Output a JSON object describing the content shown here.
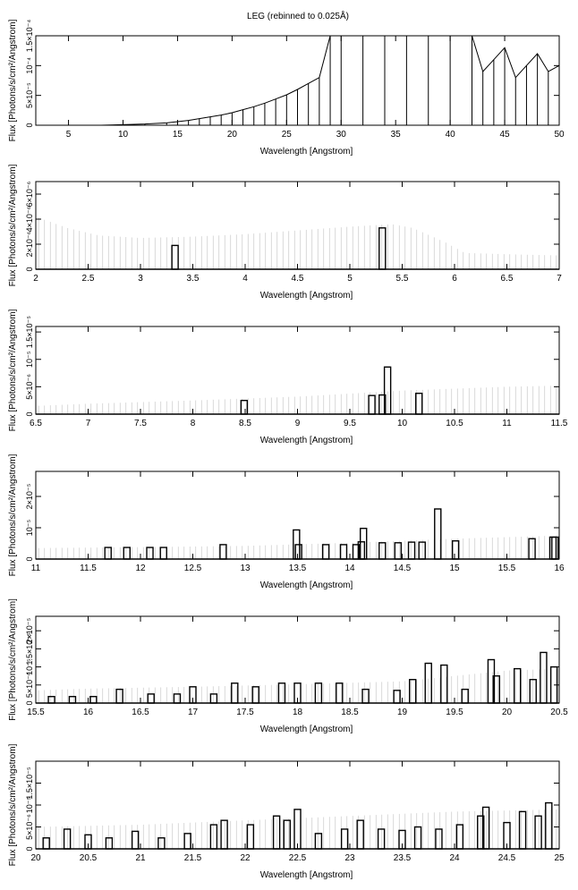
{
  "figure": {
    "title": "LEG (rebinned to 0.025Å)"
  },
  "chart_data": [
    {
      "type": "line",
      "xlabel": "Wavelength [Angstrom]",
      "ylabel": "Flux [Photons/s/cm²/Angstrom]",
      "xlim": [
        2,
        50
      ],
      "ylim": [
        0,
        0.00015
      ],
      "xticks": [
        5,
        10,
        15,
        20,
        25,
        30,
        35,
        40,
        45,
        50
      ],
      "xticklabels": [
        "5",
        "10",
        "15",
        "20",
        "25",
        "30",
        "35",
        "40",
        "45",
        "50"
      ],
      "yticks": [
        0,
        5e-05,
        0.0001,
        0.00015
      ],
      "yticklabels": [
        "0",
        "5×10⁻⁵",
        "10⁻⁴",
        "1.5×10⁻⁴"
      ],
      "series": [
        {
          "x": [
            2,
            4,
            6,
            8,
            10,
            12,
            14,
            15,
            16,
            17,
            18,
            19,
            20,
            21,
            22,
            23,
            24,
            25,
            26,
            27,
            28,
            29,
            30,
            32,
            34,
            36,
            38,
            40,
            42,
            43,
            44,
            45,
            46,
            47,
            48,
            49,
            50
          ],
          "y": [
            0,
            0,
            0,
            0,
            1e-06,
            2e-06,
            4e-06,
            6e-06,
            8e-06,
            1.1e-05,
            1.4e-05,
            1.7e-05,
            2.1e-05,
            2.6e-05,
            3.1e-05,
            3.7e-05,
            4.4e-05,
            5.1e-05,
            6e-05,
            7e-05,
            8e-05,
            0.00015,
            0.00015,
            0.00015,
            0.00015,
            0.00015,
            0.00015,
            0.00015,
            0.00015,
            9e-05,
            0.00011,
            0.00013,
            8e-05,
            0.0001,
            0.00012,
            9e-05,
            0.0001
          ]
        }
      ]
    },
    {
      "type": "line",
      "xlabel": "Wavelength [Angstrom]",
      "ylabel": "Flux [Photons/s/cm²/Angstrom]",
      "xlim": [
        2,
        7
      ],
      "ylim": [
        0,
        7e-06
      ],
      "xticks": [
        2,
        2.5,
        3,
        3.5,
        4,
        4.5,
        5,
        5.5,
        6,
        6.5,
        7
      ],
      "xticklabels": [
        "2",
        "2.5",
        "3",
        "3.5",
        "4",
        "4.5",
        "5",
        "5.5",
        "6",
        "6.5",
        "7"
      ],
      "yticks": [
        0,
        2e-06,
        4e-06,
        6e-06
      ],
      "yticklabels": [
        "0",
        "2×10⁻⁶",
        "4×10⁻⁶",
        "6×10⁻⁶"
      ],
      "series": [
        {
          "x": [
            3.33,
            5.31
          ],
          "y": [
            1.9e-06,
            3.3e-06
          ]
        }
      ],
      "error_envelope": {
        "x": [
          2,
          2.3,
          2.6,
          3,
          3.5,
          4,
          4.5,
          5,
          5.4,
          5.6,
          5.9,
          6.1,
          6.5,
          7
        ],
        "y": [
          4.2e-06,
          3.3e-06,
          2.7e-06,
          2.5e-06,
          2.6e-06,
          2.8e-06,
          3.1e-06,
          3.4e-06,
          3.6e-06,
          3.3e-06,
          2.2e-06,
          1.3e-06,
          1.2e-06,
          1.1e-06
        ]
      }
    },
    {
      "type": "line",
      "xlabel": "Wavelength [Angstrom]",
      "ylabel": "Flux [Photons/s/cm²/Angstrom]",
      "xlim": [
        6.5,
        11.5
      ],
      "ylim": [
        0,
        1.6e-05
      ],
      "xticks": [
        6.5,
        7,
        7.5,
        8,
        8.5,
        9,
        9.5,
        10,
        10.5,
        11,
        11.5
      ],
      "xticklabels": [
        "6.5",
        "7",
        "7.5",
        "8",
        "8.5",
        "9",
        "9.5",
        "10",
        "10.5",
        "11",
        "11.5"
      ],
      "yticks": [
        0,
        5e-06,
        1e-05,
        1.5e-05
      ],
      "yticklabels": [
        "0",
        "5×10⁻⁶",
        "10⁻⁵",
        "1.5×10⁻⁵"
      ],
      "series": [
        {
          "x": [
            8.49,
            9.71,
            9.81,
            9.86,
            10.16
          ],
          "y": [
            2.5e-06,
            3.4e-06,
            3.5e-06,
            8.6e-06,
            3.8e-06
          ]
        }
      ],
      "error_envelope": {
        "x": [
          6.5,
          7,
          8,
          9,
          10,
          11,
          11.5
        ],
        "y": [
          1.5e-06,
          1.9e-06,
          2.5e-06,
          3.2e-06,
          4.3e-06,
          5e-06,
          5.2e-06
        ]
      }
    },
    {
      "type": "line",
      "xlabel": "Wavelength [Angstrom]",
      "ylabel": "Flux [Photons/s/cm²/Angstrom]",
      "xlim": [
        11,
        16
      ],
      "ylim": [
        0,
        2.8e-05
      ],
      "xticks": [
        11,
        11.5,
        12,
        12.5,
        13,
        13.5,
        14,
        14.5,
        15,
        15.5,
        16
      ],
      "xticklabels": [
        "11",
        "11.5",
        "12",
        "12.5",
        "13",
        "13.5",
        "14",
        "14.5",
        "15",
        "15.5",
        "16"
      ],
      "yticks": [
        0,
        1e-05,
        2e-05
      ],
      "yticklabels": [
        "0",
        "10⁻⁵",
        "2×10⁻⁵"
      ],
      "series": [
        {
          "x": [
            11.69,
            11.87,
            12.09,
            12.22,
            12.79,
            13.49,
            13.51,
            13.77,
            13.94,
            14.06,
            14.11,
            14.13,
            14.31,
            14.46,
            14.59,
            14.69,
            14.84,
            15.01,
            15.74,
            15.94,
            15.96
          ],
          "y": [
            3.7e-06,
            3.7e-06,
            3.7e-06,
            3.7e-06,
            4.6e-06,
            9.3e-06,
            4.6e-06,
            4.6e-06,
            4.6e-06,
            4.6e-06,
            5.5e-06,
            9.8e-06,
            5.2e-06,
            5.2e-06,
            5.4e-06,
            5.4e-06,
            1.6e-05,
            5.8e-06,
            6.5e-06,
            7e-06,
            7e-06
          ]
        }
      ],
      "error_envelope": {
        "x": [
          11,
          12,
          13,
          14,
          15,
          16
        ],
        "y": [
          3.5e-06,
          3.8e-06,
          4.2e-06,
          5.2e-06,
          6.5e-06,
          7.5e-06
        ]
      }
    },
    {
      "type": "line",
      "xlabel": "Wavelength [Angstrom]",
      "ylabel": "Flux [Photons/s/cm²/Angstrom]",
      "xlim": [
        15.5,
        20.5
      ],
      "ylim": [
        0,
        2.4e-05
      ],
      "xticks": [
        15.5,
        16,
        16.5,
        17,
        17.5,
        18,
        18.5,
        19,
        19.5,
        20,
        20.5
      ],
      "xticklabels": [
        "15.5",
        "16",
        "16.5",
        "17",
        "17.5",
        "18",
        "18.5",
        "19",
        "19.5",
        "20",
        "20.5"
      ],
      "yticks": [
        0,
        5e-06,
        1e-05,
        1.5e-05,
        2e-05
      ],
      "yticklabels": [
        "0",
        "5×10⁻⁶",
        "10⁻⁵",
        "1.5×10⁻⁵",
        "2×10⁻⁵"
      ],
      "series": [
        {
          "x": [
            15.65,
            15.85,
            16.05,
            16.3,
            16.6,
            16.85,
            17.0,
            17.2,
            17.4,
            17.6,
            17.85,
            18.0,
            18.2,
            18.4,
            18.65,
            18.95,
            19.1,
            19.25,
            19.4,
            19.6,
            19.85,
            19.9,
            20.1,
            20.25,
            20.35,
            20.45
          ],
          "y": [
            1.8e-06,
            1.8e-06,
            1.8e-06,
            3.8e-06,
            2.5e-06,
            2.5e-06,
            4.5e-06,
            2.5e-06,
            5.5e-06,
            4.5e-06,
            5.5e-06,
            5.5e-06,
            5.5e-06,
            5.5e-06,
            3.8e-06,
            3.5e-06,
            6.5e-06,
            1.1e-05,
            1.05e-05,
            3.8e-06,
            1.2e-05,
            7.5e-06,
            9.5e-06,
            6.5e-06,
            1.4e-05,
            1e-05
          ]
        }
      ],
      "error_envelope": {
        "x": [
          15.5,
          16,
          17,
          18,
          19,
          19.5,
          20,
          20.5
        ],
        "y": [
          3.5e-06,
          4e-06,
          4.5e-06,
          5.2e-06,
          6e-06,
          7.5e-06,
          9e-06,
          9.5e-06
        ]
      }
    },
    {
      "type": "line",
      "xlabel": "Wavelength [Angstrom]",
      "ylabel": "Flux [Photons/s/cm²/Angstrom]",
      "xlim": [
        20,
        25
      ],
      "ylim": [
        0,
        2e-05
      ],
      "xticks": [
        20,
        20.5,
        21,
        21.5,
        22,
        22.5,
        23,
        23.5,
        24,
        24.5,
        25
      ],
      "xticklabels": [
        "20",
        "20.5",
        "21",
        "21.5",
        "22",
        "22.5",
        "23",
        "23.5",
        "24",
        "24.5",
        "25"
      ],
      "yticks": [
        0,
        5e-06,
        1e-05,
        1.5e-05
      ],
      "yticklabels": [
        "0",
        "5×10⁻⁶",
        "10⁻⁵",
        "1.5×10⁻⁵"
      ],
      "series": [
        {
          "x": [
            20.1,
            20.3,
            20.5,
            20.7,
            20.95,
            21.2,
            21.45,
            21.7,
            21.8,
            22.05,
            22.3,
            22.4,
            22.5,
            22.7,
            22.95,
            23.1,
            23.3,
            23.5,
            23.65,
            23.85,
            24.05,
            24.25,
            24.3,
            24.5,
            24.65,
            24.8,
            24.9
          ],
          "y": [
            2.5e-06,
            4.5e-06,
            3.2e-06,
            2.5e-06,
            4e-06,
            2.5e-06,
            3.5e-06,
            5.5e-06,
            6.5e-06,
            5.5e-06,
            7.5e-06,
            6.5e-06,
            9e-06,
            3.5e-06,
            4.5e-06,
            6.5e-06,
            4.5e-06,
            4.2e-06,
            5e-06,
            4.5e-06,
            5.5e-06,
            7.5e-06,
            9.5e-06,
            6e-06,
            8.5e-06,
            7.5e-06,
            1.05e-05
          ]
        }
      ],
      "error_envelope": {
        "x": [
          20,
          21,
          22,
          23,
          24,
          25
        ],
        "y": [
          5e-06,
          5.5e-06,
          6.5e-06,
          7.5e-06,
          8.5e-06,
          9e-06
        ]
      }
    }
  ]
}
